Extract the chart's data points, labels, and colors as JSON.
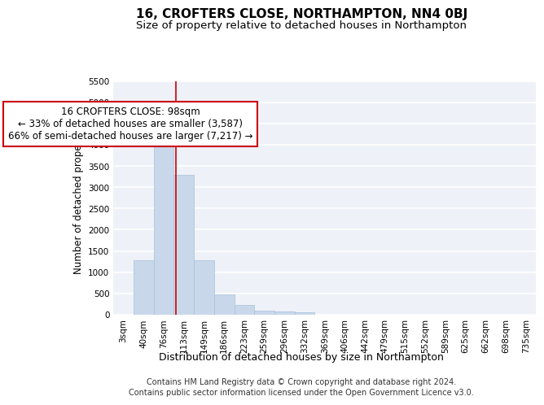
{
  "title": "16, CROFTERS CLOSE, NORTHAMPTON, NN4 0BJ",
  "subtitle": "Size of property relative to detached houses in Northampton",
  "xlabel": "Distribution of detached houses by size in Northampton",
  "ylabel": "Number of detached properties",
  "categories": [
    "3sqm",
    "40sqm",
    "76sqm",
    "113sqm",
    "149sqm",
    "186sqm",
    "223sqm",
    "259sqm",
    "296sqm",
    "332sqm",
    "369sqm",
    "406sqm",
    "442sqm",
    "479sqm",
    "515sqm",
    "552sqm",
    "589sqm",
    "625sqm",
    "662sqm",
    "698sqm",
    "735sqm"
  ],
  "values": [
    0,
    1275,
    4350,
    3300,
    1275,
    480,
    235,
    100,
    70,
    50,
    0,
    0,
    0,
    0,
    0,
    0,
    0,
    0,
    0,
    0,
    0
  ],
  "bar_color": "#c8d8ea",
  "bar_edgecolor": "#a8c0d8",
  "vline_color": "#cc0000",
  "vline_x_index": 2.62,
  "annotation_text": "16 CROFTERS CLOSE: 98sqm\n← 33% of detached houses are smaller (3,587)\n66% of semi-detached houses are larger (7,217) →",
  "annotation_box_facecolor": "#ffffff",
  "annotation_box_edgecolor": "#cc0000",
  "ylim": [
    0,
    5500
  ],
  "yticks": [
    0,
    500,
    1000,
    1500,
    2000,
    2500,
    3000,
    3500,
    4000,
    4500,
    5000,
    5500
  ],
  "footer_line1": "Contains HM Land Registry data © Crown copyright and database right 2024.",
  "footer_line2": "Contains public sector information licensed under the Open Government Licence v3.0.",
  "plot_bg_color": "#eef2f8",
  "grid_color": "#ffffff",
  "title_fontsize": 11,
  "subtitle_fontsize": 9.5,
  "ylabel_fontsize": 8.5,
  "xlabel_fontsize": 9,
  "tick_fontsize": 7.5,
  "footer_fontsize": 7,
  "annotation_fontsize": 8.5
}
